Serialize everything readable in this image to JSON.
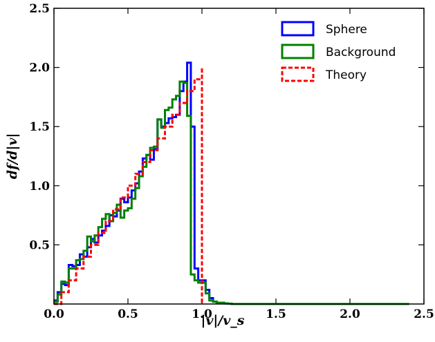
{
  "chart_data": {
    "type": "line",
    "title": "",
    "xlabel": "|v|/v_s",
    "ylabel": "df/d|v|",
    "xlim": [
      0.0,
      2.5
    ],
    "ylim": [
      0.0,
      2.5
    ],
    "xticks": [
      "0.0",
      "0.5",
      "1.0",
      "1.5",
      "2.0",
      "2.5"
    ],
    "yticks": [
      "0.5",
      "1.0",
      "1.5",
      "2.0",
      "2.5"
    ],
    "grid": false,
    "legend_position": "top-right",
    "series": [
      {
        "name": "Sphere",
        "color": "#0000ff",
        "style": "step",
        "x": [
          0.0,
          0.025,
          0.05,
          0.075,
          0.1,
          0.125,
          0.15,
          0.175,
          0.2,
          0.225,
          0.25,
          0.275,
          0.3,
          0.325,
          0.35,
          0.375,
          0.4,
          0.425,
          0.45,
          0.475,
          0.5,
          0.525,
          0.55,
          0.575,
          0.6,
          0.625,
          0.65,
          0.675,
          0.7,
          0.725,
          0.75,
          0.775,
          0.8,
          0.825,
          0.85,
          0.875,
          0.9,
          0.925,
          0.95,
          0.975,
          1.0,
          1.025,
          1.05,
          1.075,
          1.1,
          1.125,
          1.15,
          1.175,
          1.2,
          2.4
        ],
        "y": [
          0.03,
          0.1,
          0.17,
          0.16,
          0.33,
          0.32,
          0.33,
          0.42,
          0.4,
          0.48,
          0.55,
          0.52,
          0.58,
          0.62,
          0.66,
          0.75,
          0.74,
          0.79,
          0.89,
          0.86,
          0.9,
          0.96,
          1.02,
          1.12,
          1.23,
          1.26,
          1.22,
          1.31,
          1.56,
          1.5,
          1.53,
          1.57,
          1.58,
          1.6,
          1.8,
          1.88,
          2.04,
          1.5,
          0.3,
          0.2,
          0.2,
          0.12,
          0.05,
          0.02,
          0.01,
          0.01,
          0.005,
          0.003,
          0.0,
          0.0
        ]
      },
      {
        "name": "Background",
        "color": "#008000",
        "style": "step",
        "x": [
          0.0,
          0.025,
          0.05,
          0.075,
          0.1,
          0.125,
          0.15,
          0.175,
          0.2,
          0.225,
          0.25,
          0.275,
          0.3,
          0.325,
          0.35,
          0.375,
          0.4,
          0.425,
          0.45,
          0.475,
          0.5,
          0.525,
          0.55,
          0.575,
          0.6,
          0.625,
          0.65,
          0.675,
          0.7,
          0.725,
          0.75,
          0.775,
          0.8,
          0.825,
          0.85,
          0.875,
          0.9,
          0.925,
          0.95,
          0.975,
          1.0,
          1.025,
          1.05,
          1.075,
          1.1,
          1.125,
          1.15,
          1.175,
          1.2,
          2.4
        ],
        "y": [
          0.02,
          0.08,
          0.19,
          0.18,
          0.3,
          0.3,
          0.37,
          0.38,
          0.45,
          0.57,
          0.53,
          0.58,
          0.65,
          0.72,
          0.76,
          0.7,
          0.77,
          0.84,
          0.73,
          0.79,
          0.81,
          0.89,
          0.98,
          1.08,
          1.16,
          1.26,
          1.32,
          1.33,
          1.56,
          1.49,
          1.64,
          1.66,
          1.73,
          1.76,
          1.88,
          1.87,
          1.59,
          0.25,
          0.2,
          0.18,
          0.18,
          0.09,
          0.03,
          0.02,
          0.01,
          0.01,
          0.005,
          0.003,
          0.0,
          0.0
        ]
      },
      {
        "name": "Theory",
        "color": "#ff0000",
        "style": "dashed-step",
        "x": [
          0.0,
          0.05,
          0.1,
          0.15,
          0.2,
          0.25,
          0.3,
          0.35,
          0.4,
          0.45,
          0.5,
          0.55,
          0.6,
          0.65,
          0.7,
          0.75,
          0.8,
          0.85,
          0.9,
          0.95,
          1.0,
          1.0
        ],
        "y": [
          0.0,
          0.1,
          0.2,
          0.3,
          0.4,
          0.5,
          0.6,
          0.7,
          0.8,
          0.9,
          1.0,
          1.1,
          1.2,
          1.3,
          1.4,
          1.5,
          1.6,
          1.7,
          1.8,
          1.9,
          2.0,
          0.0
        ]
      }
    ]
  }
}
